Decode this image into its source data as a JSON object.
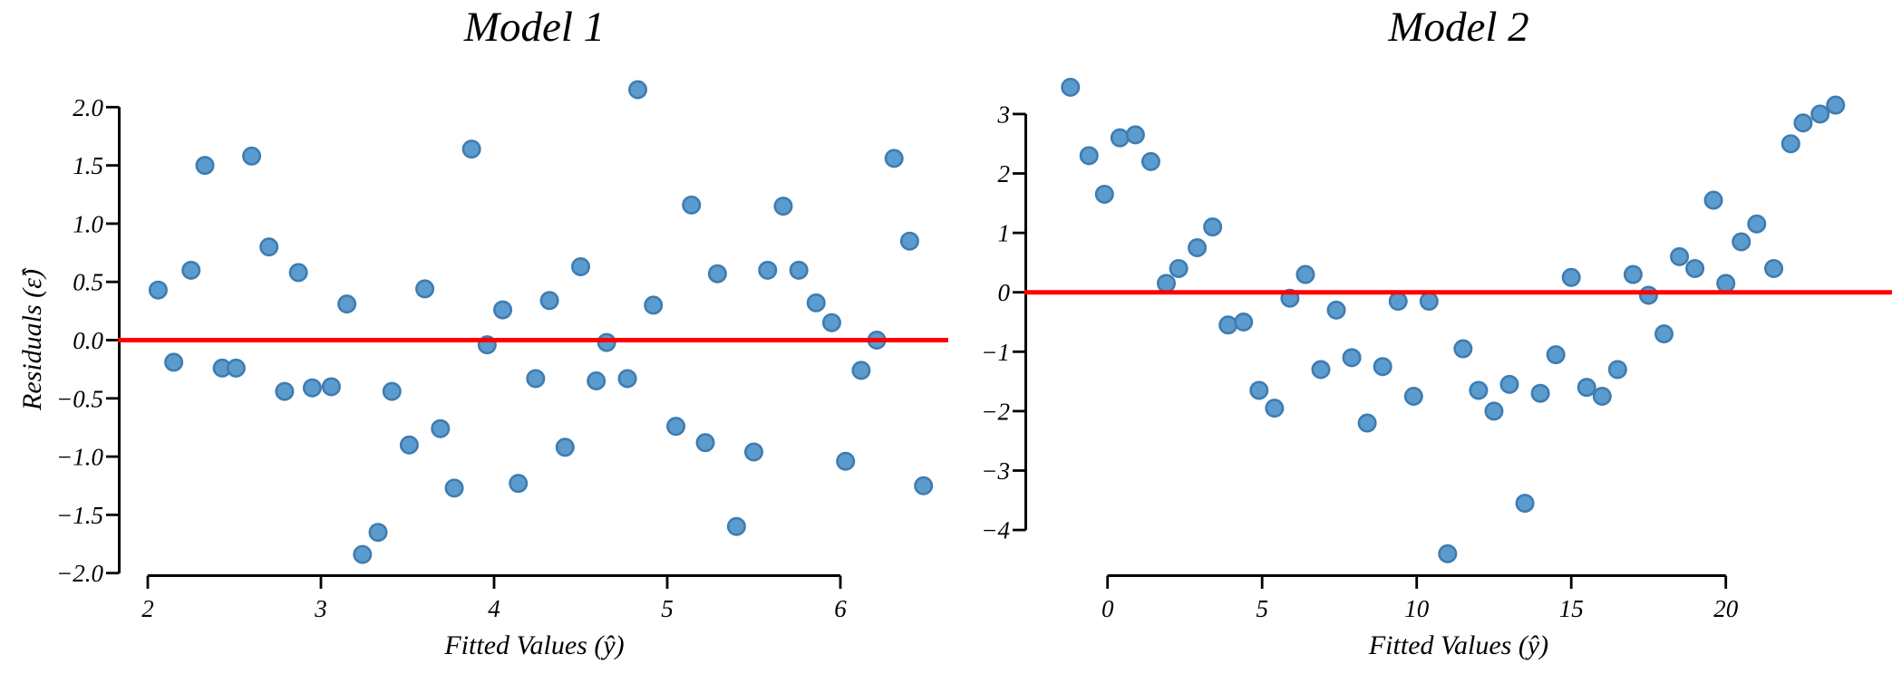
{
  "figure": {
    "background": "#ffffff",
    "axis_color": "#000000",
    "zero_line_color": "#ff0000",
    "marker_fill": "#5b9bcd",
    "marker_edge": "#3e7cb1"
  },
  "chart_data": [
    {
      "type": "scatter",
      "id": "model1",
      "title": "Model 1",
      "xlabel": "Fitted Values (ŷ)",
      "ylabel": "Residuals (ε̂)",
      "xlim": [
        1.83,
        6.63
      ],
      "ylim": [
        -2.05,
        2.25
      ],
      "grid": false,
      "legend": null,
      "x_ticks": {
        "values": [
          2,
          3,
          4,
          5,
          6
        ],
        "labels": [
          "2",
          "3",
          "4",
          "5",
          "6"
        ]
      },
      "y_ticks": {
        "values": [
          2.0,
          1.5,
          1.0,
          0.5,
          0.0,
          -0.5,
          -1.0,
          -1.5,
          -2.0
        ],
        "labels": [
          "2.0",
          "1.5",
          "1.0",
          "0.5",
          "0.0",
          "−0.5",
          "−1.0",
          "−1.5",
          "−2.0"
        ]
      },
      "zero_line_y": 0,
      "points": [
        [
          2.06,
          0.43
        ],
        [
          2.15,
          -0.19
        ],
        [
          2.25,
          0.6
        ],
        [
          2.33,
          1.5
        ],
        [
          2.43,
          -0.24
        ],
        [
          2.51,
          -0.24
        ],
        [
          2.6,
          1.58
        ],
        [
          2.7,
          0.8
        ],
        [
          2.79,
          -0.44
        ],
        [
          2.87,
          0.58
        ],
        [
          2.95,
          -0.41
        ],
        [
          3.06,
          -0.4
        ],
        [
          3.15,
          0.31
        ],
        [
          3.24,
          -1.84
        ],
        [
          3.33,
          -1.65
        ],
        [
          3.41,
          -0.44
        ],
        [
          3.51,
          -0.9
        ],
        [
          3.6,
          0.44
        ],
        [
          3.69,
          -0.76
        ],
        [
          3.77,
          -1.27
        ],
        [
          3.87,
          1.64
        ],
        [
          3.96,
          -0.04
        ],
        [
          4.05,
          0.26
        ],
        [
          4.14,
          -1.23
        ],
        [
          4.24,
          -0.33
        ],
        [
          4.32,
          0.34
        ],
        [
          4.41,
          -0.92
        ],
        [
          4.5,
          0.63
        ],
        [
          4.59,
          -0.35
        ],
        [
          4.65,
          -0.02
        ],
        [
          4.77,
          -0.33
        ],
        [
          4.83,
          2.15
        ],
        [
          4.92,
          0.3
        ],
        [
          5.05,
          -0.74
        ],
        [
          5.14,
          1.16
        ],
        [
          5.22,
          -0.88
        ],
        [
          5.29,
          0.57
        ],
        [
          5.4,
          -1.6
        ],
        [
          5.5,
          -0.96
        ],
        [
          5.58,
          0.6
        ],
        [
          5.67,
          1.15
        ],
        [
          5.76,
          0.6
        ],
        [
          5.86,
          0.32
        ],
        [
          5.95,
          0.15
        ],
        [
          6.03,
          -1.04
        ],
        [
          6.12,
          -0.26
        ],
        [
          6.21,
          0.0
        ],
        [
          6.31,
          1.56
        ],
        [
          6.4,
          0.85
        ],
        [
          6.48,
          -1.25
        ]
      ]
    },
    {
      "type": "scatter",
      "id": "model2",
      "title": "Model 2",
      "xlabel": "Fitted Values (ŷ)",
      "ylabel": "",
      "xlim": [
        -2.6,
        25.4
      ],
      "ylim": [
        -4.8,
        4.0
      ],
      "grid": false,
      "legend": null,
      "x_ticks": {
        "values": [
          0,
          5,
          10,
          15,
          20
        ],
        "labels": [
          "0",
          "5",
          "10",
          "15",
          "20"
        ]
      },
      "y_ticks": {
        "values": [
          3,
          2,
          1,
          0,
          -1,
          -2,
          -3,
          -4
        ],
        "labels": [
          "3",
          "2",
          "1",
          "0",
          "−1",
          "−2",
          "−3",
          "−4"
        ]
      },
      "zero_line_y": 0,
      "points": [
        [
          -1.2,
          3.45
        ],
        [
          -0.6,
          2.3
        ],
        [
          -0.1,
          1.65
        ],
        [
          0.4,
          2.6
        ],
        [
          0.9,
          2.65
        ],
        [
          1.4,
          2.2
        ],
        [
          1.9,
          0.15
        ],
        [
          2.3,
          0.4
        ],
        [
          2.9,
          0.75
        ],
        [
          3.4,
          1.1
        ],
        [
          3.9,
          -0.55
        ],
        [
          4.4,
          -0.5
        ],
        [
          4.9,
          -1.65
        ],
        [
          5.4,
          -1.95
        ],
        [
          5.9,
          -0.1
        ],
        [
          6.4,
          0.3
        ],
        [
          6.9,
          -1.3
        ],
        [
          7.4,
          -0.3
        ],
        [
          7.9,
          -1.1
        ],
        [
          8.4,
          -2.2
        ],
        [
          8.9,
          -1.25
        ],
        [
          9.4,
          -0.15
        ],
        [
          9.9,
          -1.75
        ],
        [
          10.4,
          -0.15
        ],
        [
          11.0,
          -4.4
        ],
        [
          11.5,
          -0.95
        ],
        [
          12.0,
          -1.65
        ],
        [
          12.5,
          -2.0
        ],
        [
          13.0,
          -1.55
        ],
        [
          13.5,
          -3.55
        ],
        [
          14.0,
          -1.7
        ],
        [
          14.5,
          -1.05
        ],
        [
          15.0,
          0.25
        ],
        [
          15.5,
          -1.6
        ],
        [
          16.0,
          -1.75
        ],
        [
          16.5,
          -1.3
        ],
        [
          17.0,
          0.3
        ],
        [
          17.5,
          -0.05
        ],
        [
          18.0,
          -0.7
        ],
        [
          18.5,
          0.6
        ],
        [
          19.0,
          0.4
        ],
        [
          19.6,
          1.55
        ],
        [
          20.0,
          0.15
        ],
        [
          20.5,
          0.85
        ],
        [
          21.0,
          1.15
        ],
        [
          21.55,
          0.4
        ],
        [
          22.1,
          2.5
        ],
        [
          22.5,
          2.85
        ],
        [
          23.05,
          3.0
        ],
        [
          23.55,
          3.15
        ]
      ]
    }
  ]
}
